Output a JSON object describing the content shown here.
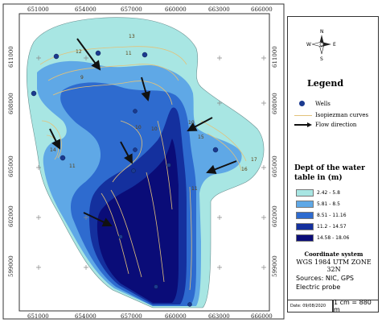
{
  "axes": {
    "x_ticks": [
      "651000",
      "654000",
      "657000",
      "660000",
      "663000",
      "666000"
    ],
    "y_ticks": [
      "611000",
      "608000",
      "605000",
      "602000",
      "599000"
    ]
  },
  "compass": {
    "n": "N",
    "s": "S",
    "e": "E",
    "w": "W"
  },
  "legend": {
    "title": "Legend",
    "wells_label": "Wells",
    "isopiezo_label": "Isopiezman curves",
    "flow_label": "Flow direction",
    "depth_title": "Dept of the water table in (m)",
    "classes": [
      {
        "label": "2.42 - 5.8",
        "color": "#a8e6e3"
      },
      {
        "label": "5.81 - 8.5",
        "color": "#5fa8e6"
      },
      {
        "label": "8.51 - 11.16",
        "color": "#2e6bcf"
      },
      {
        "label": "11.2 - 14.57",
        "color": "#14309e"
      },
      {
        "label": "14.58 - 18.06",
        "color": "#0a0c78"
      }
    ]
  },
  "coordinate_system": {
    "title": "Coordinate system",
    "value": "WGS 1984 UTM ZONE 32N"
  },
  "sources": {
    "line1": "Sources: NIC, GPS",
    "line2": "Electric probe"
  },
  "date": "Date: 09/08/2020",
  "scale": "1 cm = 880 m",
  "contour_labels": [
    "13",
    "12",
    "11",
    "9",
    "14",
    "10",
    "10",
    "10",
    "11",
    "16",
    "17",
    "15",
    "11"
  ],
  "colors": {
    "well": "#1b3a8f",
    "contour": "#e2c27a",
    "frame": "#333333"
  }
}
